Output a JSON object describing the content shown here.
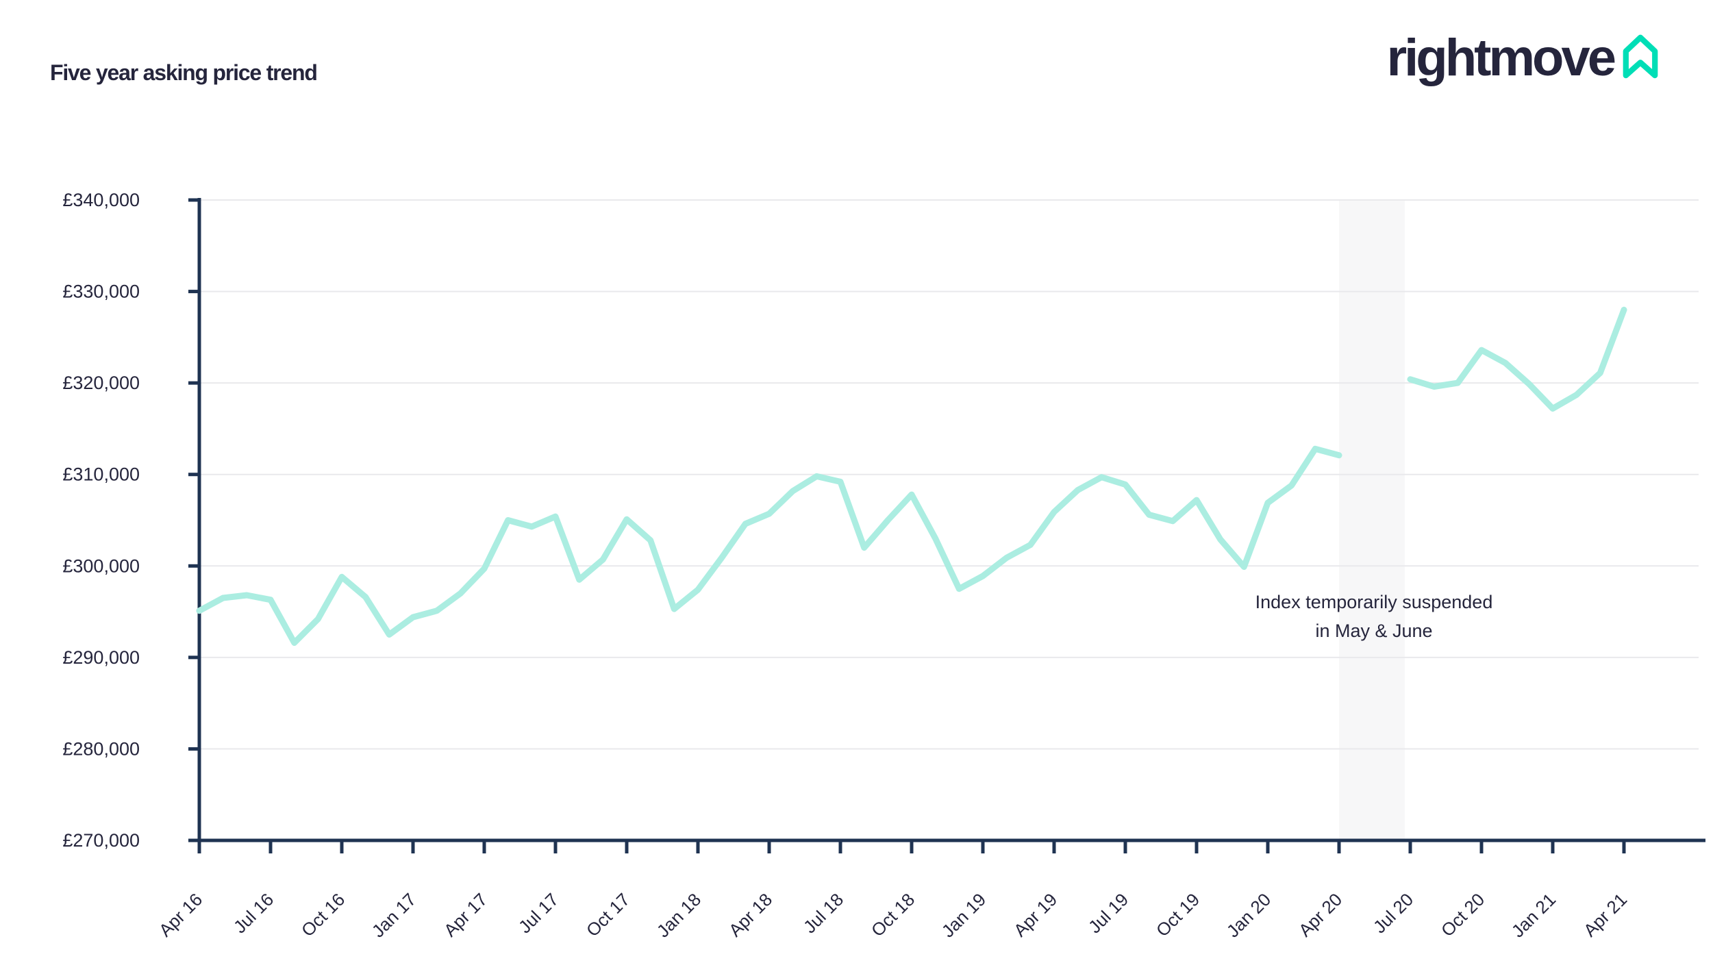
{
  "header": {
    "title": "Five year asking price trend"
  },
  "logo": {
    "text": "rightmove",
    "house_icon": "rightmove-house-icon",
    "house_color": "#00DEB6",
    "text_color": "#25253C"
  },
  "annotation": {
    "line1": "Index temporarily suspended",
    "line2": "in May & June"
  },
  "colors": {
    "line": "#ABEDE1",
    "axis": "#1F3352",
    "text": "#25253C",
    "gridline": "#E9E9EC",
    "suspension_band": "#F7F7F8",
    "background": "#FFFFFF"
  },
  "chart_data": {
    "type": "line",
    "title": "Five year asking price trend",
    "xlabel": "",
    "ylabel": "",
    "currency": "£",
    "ylim": [
      270000,
      340000
    ],
    "y_tick_step": 10000,
    "y_tick_labels": [
      "£270,000",
      "£280,000",
      "£290,000",
      "£300,000",
      "£310,000",
      "£320,000",
      "£330,000",
      "£340,000"
    ],
    "x_tick_labels": [
      "Apr 16",
      "Jul 16",
      "Oct 16",
      "Jan 17",
      "Apr 17",
      "Jul 17",
      "Oct 17",
      "Jan 18",
      "Apr 18",
      "Jul 18",
      "Oct 18",
      "Jan 19",
      "Apr 19",
      "Jul 19",
      "Oct 19",
      "Jan 20",
      "Apr 20",
      "Jul 20",
      "Oct 20",
      "Jan 21",
      "Apr 21"
    ],
    "x_tick_every_n_months": 3,
    "grid": "horizontal",
    "legend": "none",
    "gap_note": "Index suspended May & June 2020 (null values)",
    "suspension_band_months": [
      "May 20",
      "Jun 20"
    ],
    "months": [
      "Apr 16",
      "May 16",
      "Jun 16",
      "Jul 16",
      "Aug 16",
      "Sep 16",
      "Oct 16",
      "Nov 16",
      "Dec 16",
      "Jan 17",
      "Feb 17",
      "Mar 17",
      "Apr 17",
      "May 17",
      "Jun 17",
      "Jul 17",
      "Aug 17",
      "Sep 17",
      "Oct 17",
      "Nov 17",
      "Dec 17",
      "Jan 18",
      "Feb 18",
      "Mar 18",
      "Apr 18",
      "May 18",
      "Jun 18",
      "Jul 18",
      "Aug 18",
      "Sep 18",
      "Oct 18",
      "Nov 18",
      "Dec 18",
      "Jan 19",
      "Feb 19",
      "Mar 19",
      "Apr 19",
      "May 19",
      "Jun 19",
      "Jul 19",
      "Aug 19",
      "Sep 19",
      "Oct 19",
      "Nov 19",
      "Dec 19",
      "Jan 20",
      "Feb 20",
      "Mar 20",
      "Apr 20",
      "May 20",
      "Jun 20",
      "Jul 20",
      "Aug 20",
      "Sep 20",
      "Oct 20",
      "Nov 20",
      "Dec 20",
      "Jan 21",
      "Feb 21",
      "Mar 21",
      "Apr 21"
    ],
    "values": [
      295100,
      296500,
      296800,
      296300,
      291600,
      294200,
      298800,
      296600,
      292500,
      294400,
      295100,
      297000,
      299700,
      305000,
      304300,
      305400,
      298500,
      300700,
      305100,
      302800,
      295300,
      297400,
      300900,
      304600,
      305700,
      308200,
      309800,
      309200,
      302000,
      305000,
      307800,
      303000,
      297500,
      298900,
      300900,
      302300,
      305900,
      308300,
      309700,
      308900,
      305600,
      304900,
      307200,
      302900,
      299900,
      306900,
      308800,
      312800,
      312100,
      null,
      null,
      320400,
      319600,
      320000,
      323600,
      322200,
      319900,
      317200,
      318700,
      321100,
      328000
    ]
  }
}
